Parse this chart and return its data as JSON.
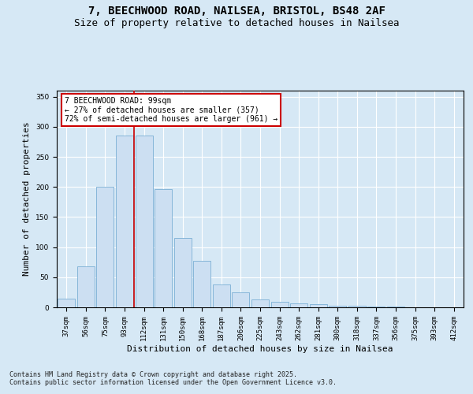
{
  "title_line1": "7, BEECHWOOD ROAD, NAILSEA, BRISTOL, BS48 2AF",
  "title_line2": "Size of property relative to detached houses in Nailsea",
  "xlabel": "Distribution of detached houses by size in Nailsea",
  "ylabel": "Number of detached properties",
  "categories": [
    "37sqm",
    "56sqm",
    "75sqm",
    "93sqm",
    "112sqm",
    "131sqm",
    "150sqm",
    "168sqm",
    "187sqm",
    "206sqm",
    "225sqm",
    "243sqm",
    "262sqm",
    "281sqm",
    "300sqm",
    "318sqm",
    "337sqm",
    "356sqm",
    "375sqm",
    "393sqm",
    "412sqm"
  ],
  "bar_values": [
    15,
    68,
    200,
    285,
    285,
    197,
    115,
    77,
    38,
    25,
    13,
    9,
    6,
    5,
    3,
    2,
    1,
    1,
    0,
    0,
    0
  ],
  "bar_color": "#ccdff2",
  "bar_edge_color": "#7bafd4",
  "vline_color": "#cc0000",
  "vline_index": 3.5,
  "annotation_text": "7 BEECHWOOD ROAD: 99sqm\n← 27% of detached houses are smaller (357)\n72% of semi-detached houses are larger (961) →",
  "annotation_box_facecolor": "#ffffff",
  "annotation_box_edgecolor": "#cc0000",
  "ylim": [
    0,
    360
  ],
  "yticks": [
    0,
    50,
    100,
    150,
    200,
    250,
    300,
    350
  ],
  "bg_color": "#d6e8f5",
  "grid_color": "#ffffff",
  "footer_text": "Contains HM Land Registry data © Crown copyright and database right 2025.\nContains public sector information licensed under the Open Government Licence v3.0.",
  "title_fontsize": 10,
  "subtitle_fontsize": 9,
  "axis_label_fontsize": 8,
  "tick_fontsize": 6.5,
  "annotation_fontsize": 7,
  "footer_fontsize": 6
}
